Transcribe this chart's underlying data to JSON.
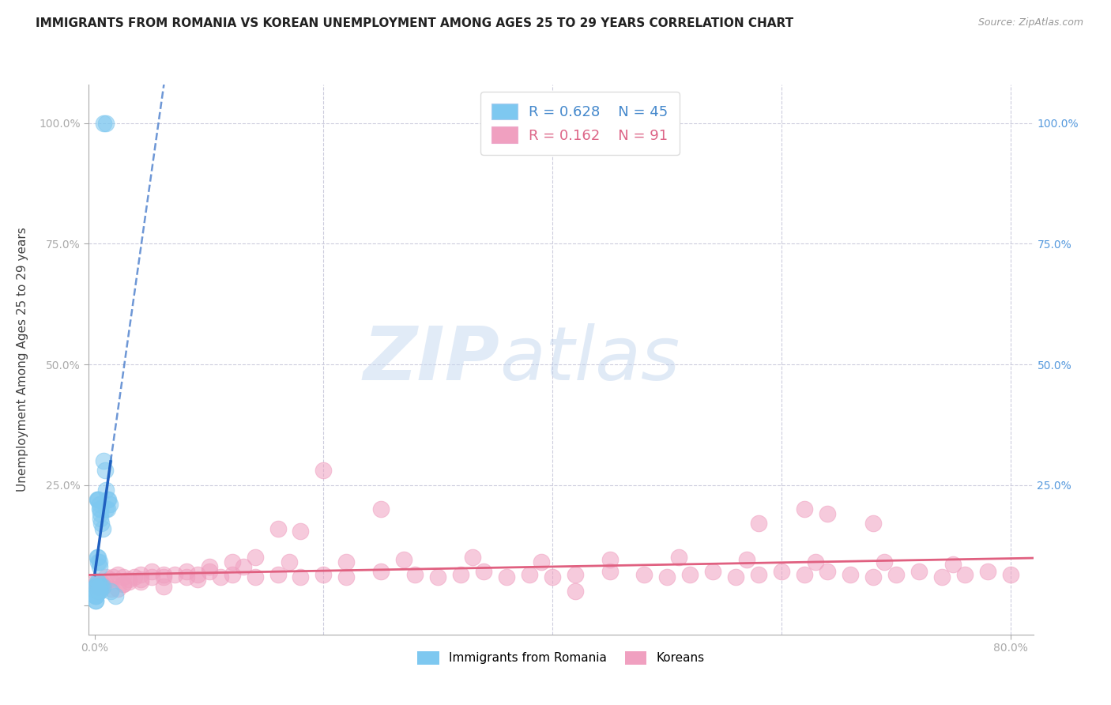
{
  "title": "IMMIGRANTS FROM ROMANIA VS KOREAN UNEMPLOYMENT AMONG AGES 25 TO 29 YEARS CORRELATION CHART",
  "source": "Source: ZipAtlas.com",
  "ylabel": "Unemployment Among Ages 25 to 29 years",
  "legend_romania": {
    "R": "0.628",
    "N": "45"
  },
  "legend_korean": {
    "R": "0.162",
    "N": "91"
  },
  "romania_color": "#7ec8f0",
  "korean_color": "#f0a0c0",
  "romania_line_color": "#2060c0",
  "korean_line_color": "#e06080",
  "background": "#ffffff",
  "grid_color": "#ccccdd",
  "watermark_zip": "ZIP",
  "watermark_atlas": "atlas",
  "romania_x": [
    0.008,
    0.01,
    0.008,
    0.009,
    0.01,
    0.011,
    0.012,
    0.013,
    0.01,
    0.011,
    0.002,
    0.003,
    0.003,
    0.004,
    0.004,
    0.005,
    0.005,
    0.005,
    0.006,
    0.007,
    0.002,
    0.003,
    0.003,
    0.004,
    0.004,
    0.002,
    0.003,
    0.005,
    0.006,
    0.007,
    0.001,
    0.001,
    0.002,
    0.002,
    0.003,
    0.003,
    0.004,
    0.004,
    0.001,
    0.001,
    0.001,
    0.001,
    0.001,
    0.014,
    0.018
  ],
  "romania_y": [
    1.0,
    1.0,
    0.3,
    0.28,
    0.24,
    0.22,
    0.22,
    0.21,
    0.2,
    0.2,
    0.22,
    0.22,
    0.22,
    0.21,
    0.2,
    0.2,
    0.19,
    0.18,
    0.17,
    0.16,
    0.1,
    0.1,
    0.09,
    0.09,
    0.08,
    0.05,
    0.05,
    0.04,
    0.04,
    0.04,
    0.04,
    0.04,
    0.04,
    0.03,
    0.03,
    0.03,
    0.03,
    0.03,
    0.02,
    0.02,
    0.02,
    0.01,
    0.01,
    0.03,
    0.02
  ],
  "korean_x": [
    0.001,
    0.002,
    0.003,
    0.005,
    0.007,
    0.01,
    0.013,
    0.016,
    0.02,
    0.025,
    0.03,
    0.035,
    0.04,
    0.05,
    0.06,
    0.07,
    0.08,
    0.09,
    0.1,
    0.11,
    0.12,
    0.14,
    0.16,
    0.18,
    0.2,
    0.22,
    0.25,
    0.28,
    0.3,
    0.32,
    0.34,
    0.36,
    0.38,
    0.4,
    0.42,
    0.45,
    0.48,
    0.5,
    0.52,
    0.54,
    0.56,
    0.58,
    0.6,
    0.62,
    0.64,
    0.66,
    0.68,
    0.7,
    0.72,
    0.74,
    0.76,
    0.78,
    0.8,
    0.003,
    0.008,
    0.015,
    0.025,
    0.04,
    0.06,
    0.09,
    0.13,
    0.17,
    0.22,
    0.27,
    0.33,
    0.39,
    0.45,
    0.51,
    0.57,
    0.63,
    0.69,
    0.75,
    0.62,
    0.68,
    0.58,
    0.64,
    0.2,
    0.25,
    0.18,
    0.16,
    0.14,
    0.12,
    0.1,
    0.08,
    0.06,
    0.05,
    0.04,
    0.03,
    0.025,
    0.02,
    0.42
  ],
  "korean_y": [
    0.05,
    0.045,
    0.04,
    0.05,
    0.045,
    0.06,
    0.055,
    0.06,
    0.065,
    0.06,
    0.055,
    0.06,
    0.065,
    0.07,
    0.06,
    0.065,
    0.06,
    0.065,
    0.07,
    0.06,
    0.065,
    0.06,
    0.065,
    0.06,
    0.065,
    0.06,
    0.07,
    0.065,
    0.06,
    0.065,
    0.07,
    0.06,
    0.065,
    0.06,
    0.065,
    0.07,
    0.065,
    0.06,
    0.065,
    0.07,
    0.06,
    0.065,
    0.07,
    0.065,
    0.07,
    0.065,
    0.06,
    0.065,
    0.07,
    0.06,
    0.065,
    0.07,
    0.065,
    0.03,
    0.04,
    0.035,
    0.045,
    0.05,
    0.04,
    0.055,
    0.08,
    0.09,
    0.09,
    0.095,
    0.1,
    0.09,
    0.095,
    0.1,
    0.095,
    0.09,
    0.09,
    0.085,
    0.2,
    0.17,
    0.17,
    0.19,
    0.28,
    0.2,
    0.155,
    0.16,
    0.1,
    0.09,
    0.08,
    0.07,
    0.065,
    0.06,
    0.055,
    0.05,
    0.045,
    0.035,
    0.03
  ],
  "xlim": [
    -0.005,
    0.82
  ],
  "ylim": [
    -0.06,
    1.08
  ],
  "yticks": [
    0.0,
    0.25,
    0.5,
    0.75,
    1.0
  ],
  "xticks": [
    0.0,
    0.8
  ],
  "xtick_labels": [
    "0.0%",
    "80.0%"
  ],
  "ytick_labels_left": [
    "",
    "25.0%",
    "50.0%",
    "75.0%",
    "100.0%"
  ],
  "ytick_labels_right": [
    "",
    "25.0%",
    "50.0%",
    "75.0%",
    "100.0%"
  ]
}
